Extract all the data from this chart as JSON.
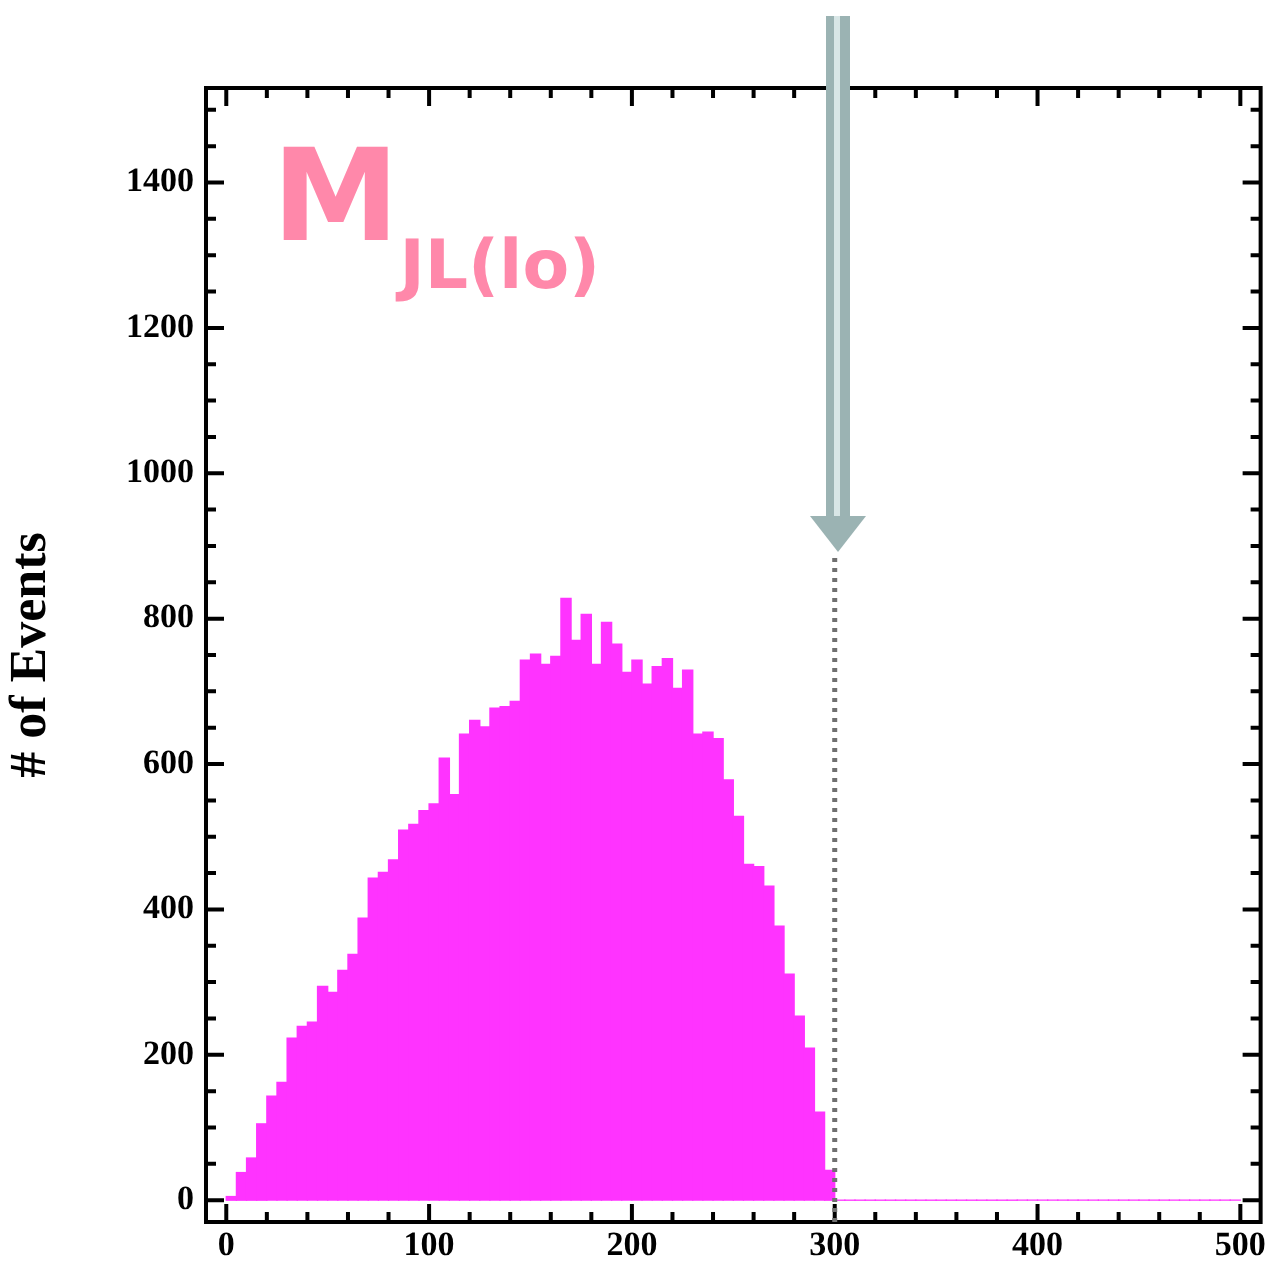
{
  "chart_data": {
    "type": "histogram",
    "ylabel": "# of Events",
    "annotations": [
      "M$_{JL(lo)}$"
    ],
    "color": "#ff33ff",
    "grid": false,
    "legend": false,
    "bins": [
      0,
      5,
      10,
      15,
      20,
      25,
      30,
      35,
      40,
      45,
      50,
      55,
      60,
      65,
      70,
      75,
      80,
      85,
      90,
      95,
      100,
      105,
      110,
      115,
      120,
      125,
      130,
      135,
      140,
      145,
      150,
      155,
      160,
      165,
      170,
      175,
      180,
      185,
      190,
      195,
      200,
      205,
      210,
      215,
      220,
      225,
      230,
      235,
      240,
      245,
      250,
      255,
      260,
      265,
      270,
      275,
      280,
      285,
      290,
      295,
      300,
      305,
      310,
      315,
      320,
      325,
      330,
      335,
      340,
      345,
      350,
      355,
      360,
      365,
      370,
      375,
      380,
      385,
      390,
      395,
      400,
      405,
      410,
      415,
      420,
      425,
      430,
      435,
      440,
      445,
      450,
      455,
      460,
      465,
      470,
      475,
      480,
      485,
      490,
      495,
      500
    ],
    "values": [
      5,
      38,
      58,
      105,
      143,
      162,
      223,
      239,
      245,
      294,
      286,
      316,
      338,
      388,
      443,
      451,
      468,
      509,
      517,
      536,
      545,
      608,
      558,
      641,
      660,
      651,
      677,
      679,
      686,
      743,
      751,
      737,
      748,
      828,
      770,
      806,
      737,
      795,
      765,
      726,
      743,
      710,
      734,
      745,
      704,
      729,
      641,
      644,
      635,
      578,
      528,
      462,
      459,
      432,
      377,
      311,
      253,
      209,
      121,
      41,
      0,
      0,
      0,
      0,
      0,
      0,
      0,
      0,
      0,
      0,
      0,
      0,
      0,
      0,
      0,
      0,
      0,
      0,
      0,
      0,
      0,
      0,
      0,
      0,
      0,
      0,
      0,
      0,
      0,
      0,
      0,
      0,
      0,
      0,
      0,
      0,
      0,
      0,
      0,
      0
    ],
    "xlim": [
      -10,
      510
    ],
    "ylim": [
      -30,
      1530
    ],
    "xticks": [
      0,
      {
        "value": 20,
        "label": null
      },
      {
        "value": 40,
        "label": null
      },
      {
        "value": 60,
        "label": null
      },
      {
        "value": 80,
        "label": null
      },
      100,
      {
        "value": 120,
        "label": null
      },
      {
        "value": 140,
        "label": null
      },
      {
        "value": 160,
        "label": null
      },
      {
        "value": 180,
        "label": null
      },
      200,
      {
        "value": 220,
        "label": null
      },
      {
        "value": 240,
        "label": null
      },
      {
        "value": 260,
        "label": null
      },
      {
        "value": 280,
        "label": null
      },
      300,
      {
        "value": 320,
        "label": null
      },
      {
        "value": 340,
        "label": null
      },
      {
        "value": 360,
        "label": null
      },
      {
        "value": 380,
        "label": null
      },
      400,
      {
        "value": 420,
        "label": null
      },
      {
        "value": 440,
        "label": null
      },
      {
        "value": 460,
        "label": null
      },
      {
        "value": 480,
        "label": null
      },
      500
    ],
    "yticks": [
      0,
      {
        "value": 50,
        "label": null
      },
      {
        "value": 100,
        "label": null
      },
      {
        "value": 150,
        "label": null
      },
      200,
      {
        "value": 250,
        "label": null
      },
      {
        "value": 300,
        "label": null
      },
      {
        "value": 350,
        "label": null
      },
      400,
      {
        "value": 450,
        "label": null
      },
      {
        "value": 500,
        "label": null
      },
      {
        "value": 550,
        "label": null
      },
      600,
      {
        "value": 650,
        "label": null
      },
      {
        "value": 700,
        "label": null
      },
      {
        "value": 750,
        "label": null
      },
      800,
      {
        "value": 850,
        "label": null
      },
      {
        "value": 900,
        "label": null
      },
      {
        "value": 950,
        "label": null
      },
      1000,
      {
        "value": 1050,
        "label": null
      },
      {
        "value": 1100,
        "label": null
      },
      {
        "value": 1150,
        "label": null
      },
      1200,
      {
        "value": 1250,
        "label": null
      },
      {
        "value": 1300,
        "label": null
      },
      {
        "value": 1350,
        "label": null
      },
      1400,
      {
        "value": 1450,
        "label": null
      },
      {
        "value": 1500,
        "label": null
      }
    ],
    "ref_lines": [
      {
        "axis": "x",
        "value": 300,
        "color": "#707070",
        "line_style": "dotted"
      }
    ]
  }
}
